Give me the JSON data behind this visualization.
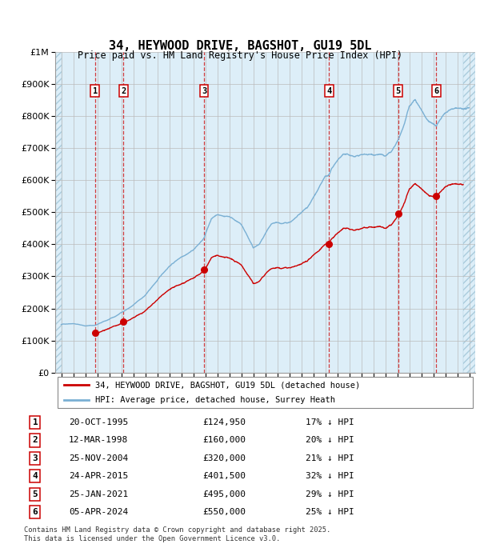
{
  "title": "34, HEYWOOD DRIVE, BAGSHOT, GU19 5DL",
  "subtitle": "Price paid vs. HM Land Registry's House Price Index (HPI)",
  "sale_dates_num": [
    1995.81,
    1998.19,
    2004.9,
    2015.31,
    2021.07,
    2024.26
  ],
  "sale_prices": [
    124950,
    160000,
    320000,
    401500,
    495000,
    550000
  ],
  "sale_discounts": [
    0.17,
    0.2,
    0.21,
    0.32,
    0.29,
    0.25
  ],
  "sale_labels": [
    "1",
    "2",
    "3",
    "4",
    "5",
    "6"
  ],
  "hpi_label": "HPI: Average price, detached house, Surrey Heath",
  "price_label": "34, HEYWOOD DRIVE, BAGSHOT, GU19 5DL (detached house)",
  "table_rows": [
    [
      "1",
      "20-OCT-1995",
      "£124,950",
      "17% ↓ HPI"
    ],
    [
      "2",
      "12-MAR-1998",
      "£160,000",
      "20% ↓ HPI"
    ],
    [
      "3",
      "25-NOV-2004",
      "£320,000",
      "21% ↓ HPI"
    ],
    [
      "4",
      "24-APR-2015",
      "£401,500",
      "32% ↓ HPI"
    ],
    [
      "5",
      "25-JAN-2021",
      "£495,000",
      "29% ↓ HPI"
    ],
    [
      "6",
      "05-APR-2024",
      "£550,000",
      "25% ↓ HPI"
    ]
  ],
  "footer": "Contains HM Land Registry data © Crown copyright and database right 2025.\nThis data is licensed under the Open Government Licence v3.0.",
  "ylim": [
    0,
    1000000
  ],
  "xlim_start": 1992.5,
  "xlim_end": 2027.5,
  "grid_color": "#cccccc",
  "red_color": "#cc0000",
  "blue_color": "#7ab0d4",
  "hpi_base_points": [
    [
      1993.0,
      150000
    ],
    [
      1994.0,
      155000
    ],
    [
      1995.0,
      148000
    ],
    [
      1995.81,
      150000
    ],
    [
      1996.5,
      160000
    ],
    [
      1997.5,
      175000
    ],
    [
      1998.19,
      192000
    ],
    [
      1999.0,
      210000
    ],
    [
      2000.0,
      240000
    ],
    [
      2001.0,
      285000
    ],
    [
      2002.0,
      330000
    ],
    [
      2003.0,
      360000
    ],
    [
      2004.0,
      385000
    ],
    [
      2004.9,
      420000
    ],
    [
      2005.5,
      480000
    ],
    [
      2006.0,
      495000
    ],
    [
      2006.5,
      490000
    ],
    [
      2007.0,
      490000
    ],
    [
      2007.5,
      480000
    ],
    [
      2008.0,
      465000
    ],
    [
      2008.5,
      430000
    ],
    [
      2009.0,
      390000
    ],
    [
      2009.5,
      400000
    ],
    [
      2010.0,
      430000
    ],
    [
      2010.5,
      455000
    ],
    [
      2011.0,
      460000
    ],
    [
      2011.5,
      455000
    ],
    [
      2012.0,
      460000
    ],
    [
      2012.5,
      470000
    ],
    [
      2013.0,
      485000
    ],
    [
      2013.5,
      500000
    ],
    [
      2014.0,
      530000
    ],
    [
      2014.5,
      560000
    ],
    [
      2015.0,
      590000
    ],
    [
      2015.31,
      595000
    ],
    [
      2015.5,
      610000
    ],
    [
      2016.0,
      640000
    ],
    [
      2016.5,
      660000
    ],
    [
      2017.0,
      655000
    ],
    [
      2017.5,
      650000
    ],
    [
      2018.0,
      655000
    ],
    [
      2018.5,
      655000
    ],
    [
      2019.0,
      655000
    ],
    [
      2019.5,
      660000
    ],
    [
      2020.0,
      650000
    ],
    [
      2020.5,
      660000
    ],
    [
      2021.07,
      690000
    ],
    [
      2021.5,
      730000
    ],
    [
      2022.0,
      790000
    ],
    [
      2022.5,
      810000
    ],
    [
      2023.0,
      780000
    ],
    [
      2023.5,
      750000
    ],
    [
      2024.0,
      740000
    ],
    [
      2024.26,
      730000
    ],
    [
      2024.5,
      745000
    ],
    [
      2025.0,
      765000
    ],
    [
      2025.5,
      775000
    ],
    [
      2026.0,
      775000
    ],
    [
      2026.5,
      770000
    ]
  ]
}
